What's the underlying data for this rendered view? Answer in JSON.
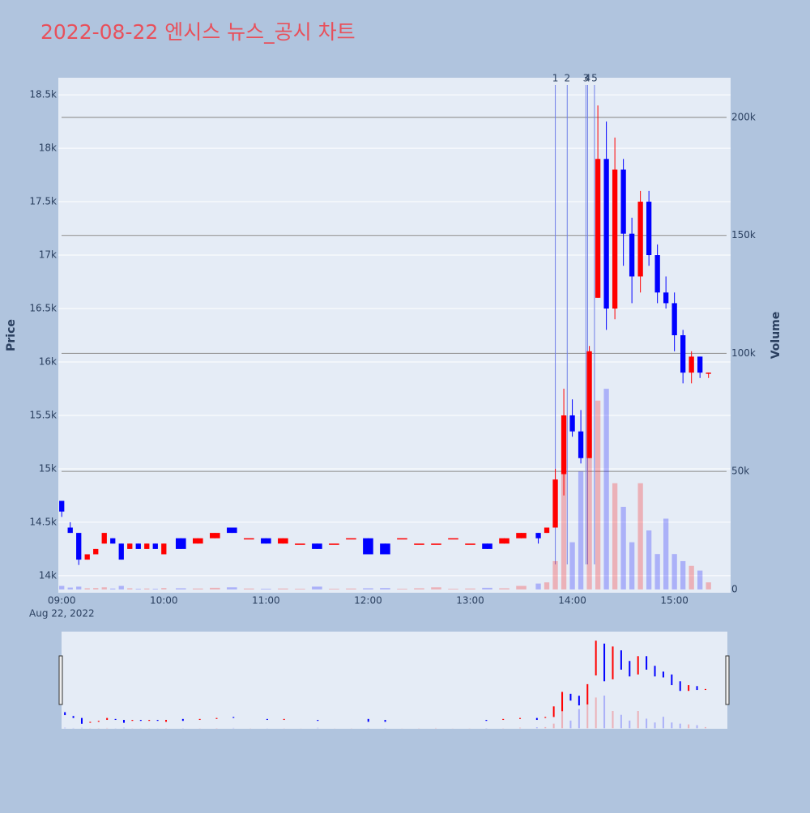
{
  "chart_data": {
    "type": "candlestick",
    "title": "2022-08-22 엔시스 뉴스_공시 차트",
    "y_label": "Price",
    "y2_label": "Volume",
    "x_date_label": "Aug 22, 2022",
    "increasing_color": "#ff0000",
    "decreasing_color": "#0000ff",
    "event_line_color": "#6f7fe8",
    "x": [
      "09:00",
      "09:05",
      "09:10",
      "09:15",
      "09:20",
      "09:25",
      "09:30",
      "09:35",
      "09:40",
      "09:45",
      "09:50",
      "09:55",
      "10:00",
      "10:10",
      "10:20",
      "10:30",
      "10:40",
      "10:50",
      "11:00",
      "11:10",
      "11:20",
      "11:30",
      "11:40",
      "11:50",
      "12:00",
      "12:10",
      "12:20",
      "12:30",
      "12:40",
      "12:50",
      "13:00",
      "13:10",
      "13:20",
      "13:30",
      "13:40",
      "13:45",
      "13:50",
      "13:55",
      "14:00",
      "14:05",
      "14:10",
      "14:15",
      "14:20",
      "14:25",
      "14:30",
      "14:35",
      "14:40",
      "14:45",
      "14:50",
      "14:55",
      "15:00",
      "15:05",
      "15:10",
      "15:15",
      "15:20"
    ],
    "open": [
      14700,
      14450,
      14400,
      14150,
      14200,
      14300,
      14350,
      14300,
      14250,
      14300,
      14250,
      14300,
      14200,
      14350,
      14300,
      14350,
      14450,
      14350,
      14350,
      14300,
      14300,
      14300,
      14300,
      14350,
      14350,
      14300,
      14350,
      14300,
      14300,
      14350,
      14300,
      14300,
      14300,
      14350,
      14400,
      14400,
      14450,
      14950,
      15500,
      15350,
      15100,
      16600,
      17900,
      16500,
      17800,
      17200,
      16800,
      17500,
      17000,
      16650,
      16550,
      16250,
      15900,
      16050,
      15900
    ],
    "high": [
      14700,
      14500,
      14400,
      14200,
      14250,
      14400,
      14350,
      14300,
      14300,
      14300,
      14300,
      14300,
      14300,
      14350,
      14350,
      14400,
      14450,
      14350,
      14350,
      14350,
      14300,
      14300,
      14300,
      14350,
      14350,
      14300,
      14350,
      14300,
      14300,
      14350,
      14300,
      14300,
      14350,
      14400,
      14400,
      14450,
      15000,
      15750,
      15650,
      15550,
      16150,
      18400,
      18250,
      18100,
      17900,
      17350,
      17600,
      17600,
      17100,
      16800,
      16650,
      16300,
      16100,
      16050,
      15900
    ],
    "low": [
      14550,
      14400,
      14100,
      14150,
      14200,
      14300,
      14300,
      14150,
      14250,
      14250,
      14250,
      14250,
      14200,
      14250,
      14300,
      14350,
      14400,
      14350,
      14300,
      14300,
      14300,
      14250,
      14300,
      14350,
      14200,
      14200,
      14350,
      14300,
      14300,
      14350,
      14300,
      14250,
      14300,
      14350,
      14300,
      14400,
      14450,
      14750,
      15300,
      15050,
      15100,
      16600,
      16300,
      16400,
      16900,
      16550,
      16650,
      16900,
      16550,
      16500,
      16100,
      15800,
      15800,
      15850,
      15850
    ],
    "close": [
      14600,
      14400,
      14150,
      14200,
      14250,
      14400,
      14300,
      14150,
      14300,
      14250,
      14300,
      14250,
      14300,
      14250,
      14350,
      14400,
      14400,
      14350,
      14300,
      14350,
      14300,
      14250,
      14300,
      14350,
      14200,
      14200,
      14350,
      14300,
      14300,
      14350,
      14300,
      14250,
      14350,
      14400,
      14350,
      14450,
      14900,
      15500,
      15350,
      15100,
      16100,
      17900,
      16500,
      17800,
      17200,
      16800,
      17500,
      17000,
      16650,
      16550,
      16250,
      15900,
      16050,
      15900,
      15900
    ],
    "volume": [
      1500,
      800,
      1200,
      500,
      600,
      900,
      400,
      1500,
      500,
      300,
      400,
      300,
      600,
      500,
      400,
      700,
      900,
      400,
      300,
      400,
      300,
      1200,
      300,
      400,
      500,
      600,
      300,
      500,
      900,
      300,
      400,
      700,
      500,
      1500,
      2500,
      3000,
      12000,
      55000,
      20000,
      50000,
      68000,
      80000,
      85000,
      45000,
      35000,
      20000,
      45000,
      25000,
      15000,
      30000,
      15000,
      12000,
      10000,
      8000,
      3000
    ],
    "xlim": [
      "08:58",
      "15:33"
    ],
    "xticks": [
      "09:00",
      "10:00",
      "11:00",
      "12:00",
      "13:00",
      "14:00",
      "15:00"
    ],
    "ylim": [
      13840,
      18660
    ],
    "yticks": [
      {
        "value": 14000,
        "label": "14k"
      },
      {
        "value": 14500,
        "label": "14.5k"
      },
      {
        "value": 15000,
        "label": "15k"
      },
      {
        "value": 15500,
        "label": "15.5k"
      },
      {
        "value": 16000,
        "label": "16k"
      },
      {
        "value": 16500,
        "label": "16.5k"
      },
      {
        "value": 17000,
        "label": "17k"
      },
      {
        "value": 17500,
        "label": "17.5k"
      },
      {
        "value": 18000,
        "label": "18k"
      },
      {
        "value": 18500,
        "label": "18.5k"
      }
    ],
    "y2lim": [
      -1400,
      216800
    ],
    "y2ticks": [
      0,
      {
        "value": 50000,
        "label": "50k"
      },
      {
        "value": 100000,
        "label": "100k"
      },
      {
        "value": 150000,
        "label": "150k"
      },
      {
        "value": 200000,
        "label": "200k"
      }
    ],
    "events": [
      {
        "label": "1",
        "x": "13:50"
      },
      {
        "label": "2",
        "x": "13:57"
      },
      {
        "label": "3",
        "x": "14:08"
      },
      {
        "label": "4",
        "x": "14:09"
      },
      {
        "label": "5",
        "x": "14:13"
      }
    ]
  }
}
